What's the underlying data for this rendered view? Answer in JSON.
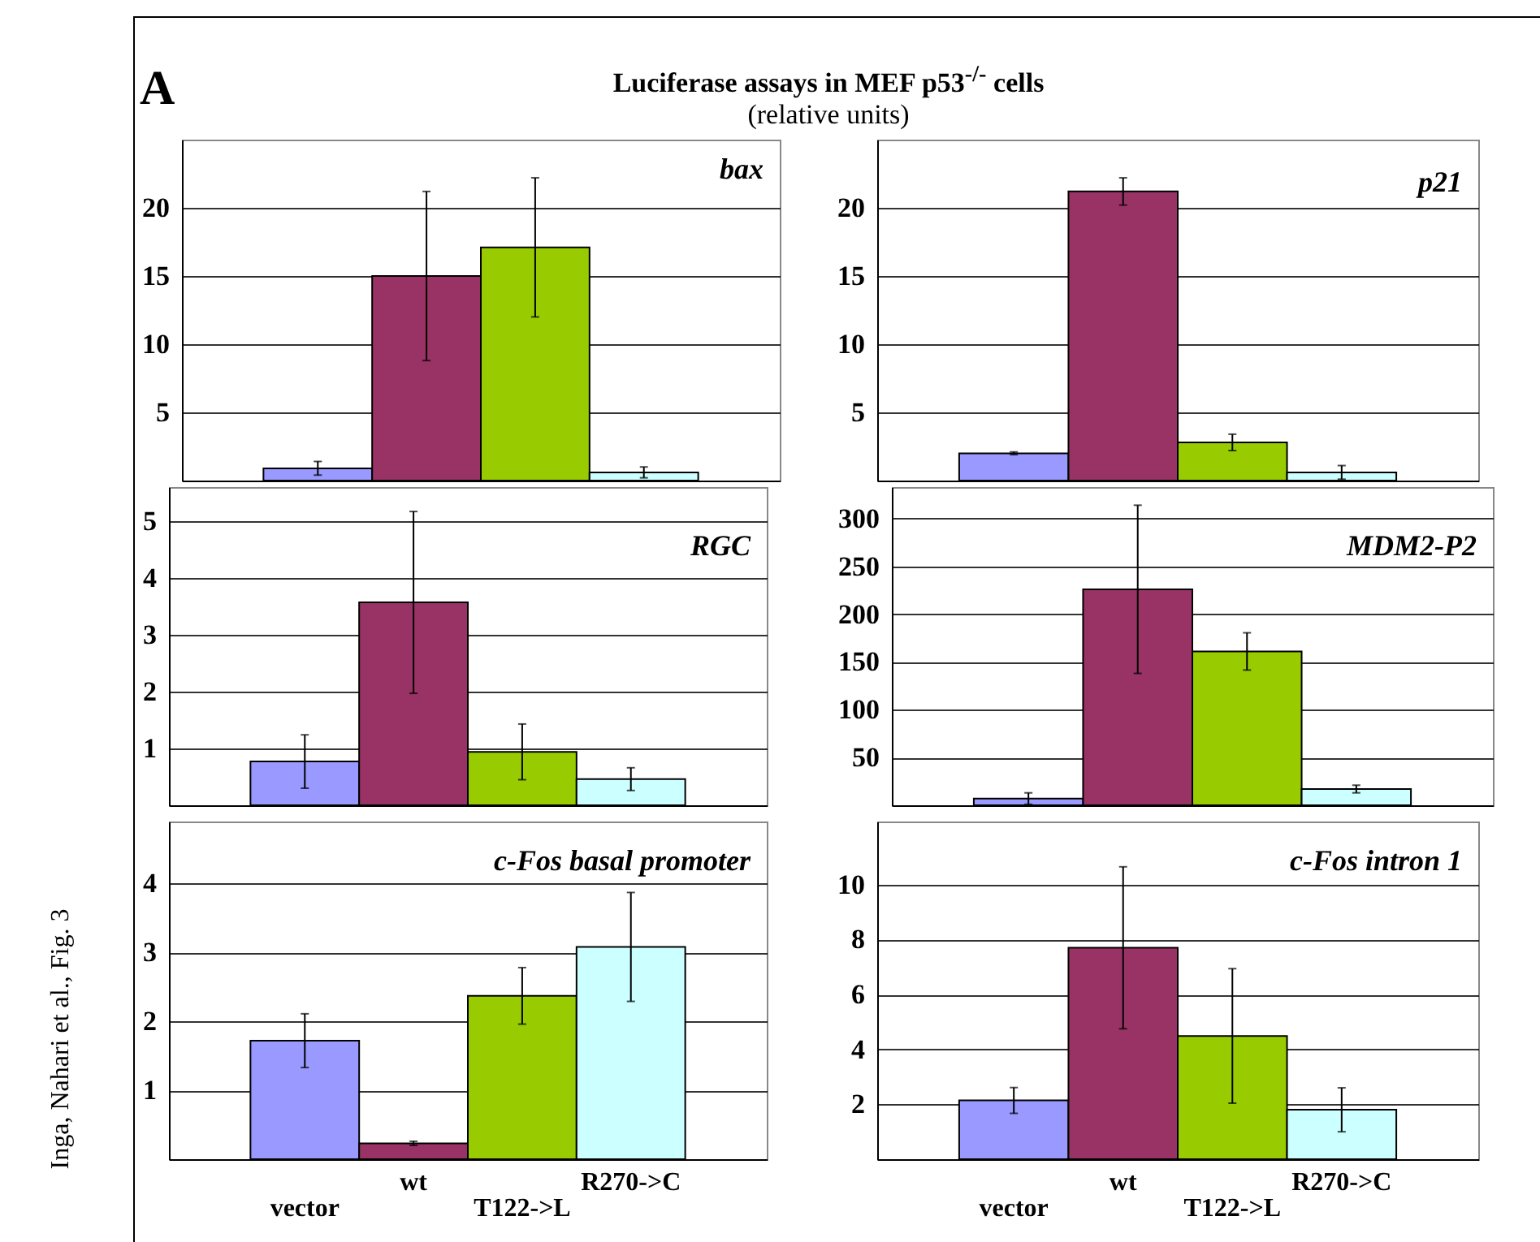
{
  "chart_data": [
    {
      "type": "bar",
      "title": "bax",
      "annotations": [
        "A",
        "Luciferase assays in MEF p53$^{-/-}$ cells",
        "(relative units)",
        "Inga, Nahari et al., Fig. 3"
      ],
      "categories": [
        null,
        null,
        null,
        null
      ],
      "values": [
        0.9,
        15,
        17.1,
        0.6
      ],
      "errors": [
        0.5,
        6.2,
        5.1,
        0.4
      ],
      "colors": [
        "#9999ff",
        "#993366",
        "#99cc00",
        "#ccffff"
      ],
      "ylim": [
        0,
        25
      ],
      "yticks": [
        5,
        10,
        15,
        20
      ],
      "grid": "y",
      "tick_labels": "y"
    },
    {
      "type": "bar",
      "title": "p21",
      "categories": [
        null,
        null,
        null,
        null
      ],
      "values": [
        2.0,
        21.2,
        2.8,
        0.6
      ],
      "errors": [
        0.1,
        1.0,
        0.6,
        0.5
      ],
      "colors": [
        "#9999ff",
        "#993366",
        "#99cc00",
        "#ccffff"
      ],
      "ylim": [
        0,
        25
      ],
      "yticks": [
        5,
        10,
        15,
        20
      ],
      "grid": "y",
      "tick_labels": "y"
    },
    {
      "type": "bar",
      "title": "RGC",
      "categories": [
        null,
        null,
        null,
        null
      ],
      "values": [
        0.77,
        3.57,
        0.94,
        0.46
      ],
      "errors": [
        0.47,
        1.6,
        0.49,
        0.2
      ],
      "colors": [
        "#9999ff",
        "#993366",
        "#99cc00",
        "#ccffff"
      ],
      "ylim": [
        0,
        5.6
      ],
      "yticks": [
        1,
        2,
        3,
        4,
        5
      ],
      "grid": "y",
      "tick_labels": "y"
    },
    {
      "type": "bar",
      "title": "MDM2-P2",
      "categories": [
        null,
        null,
        null,
        null
      ],
      "values": [
        7,
        226,
        161,
        17
      ],
      "errors": [
        6,
        88,
        19.5,
        4
      ],
      "colors": [
        "#9999ff",
        "#993366",
        "#99cc00",
        "#ccffff"
      ],
      "ylim": [
        0,
        333
      ],
      "yticks": [
        50,
        100,
        150,
        200,
        250,
        300
      ],
      "grid": "y",
      "tick_labels": "y"
    },
    {
      "type": "bar",
      "title": "c-Fos basal promoter",
      "categories": [
        "vector",
        "wt",
        "T122->L",
        "R270->C"
      ],
      "values": [
        1.72,
        0.23,
        2.37,
        3.08
      ],
      "errors": [
        0.39,
        0.03,
        0.41,
        0.79
      ],
      "colors": [
        "#9999ff",
        "#993366",
        "#99cc00",
        "#ccffff"
      ],
      "ylim": [
        0,
        4.9
      ],
      "yticks": [
        1,
        2,
        3,
        4
      ],
      "grid": "y"
    },
    {
      "type": "bar",
      "title": "c-Fos intron 1",
      "categories": [
        "vector",
        "wt",
        "T122->L",
        "R270->C"
      ],
      "values": [
        2.14,
        7.7,
        4.49,
        1.8
      ],
      "errors": [
        0.47,
        2.95,
        2.45,
        0.8
      ],
      "colors": [
        "#9999ff",
        "#993366",
        "#99cc00",
        "#ccffff"
      ],
      "ylim": [
        0,
        12.3
      ],
      "yticks": [
        2,
        4,
        6,
        8,
        10
      ],
      "grid": "y"
    }
  ]
}
